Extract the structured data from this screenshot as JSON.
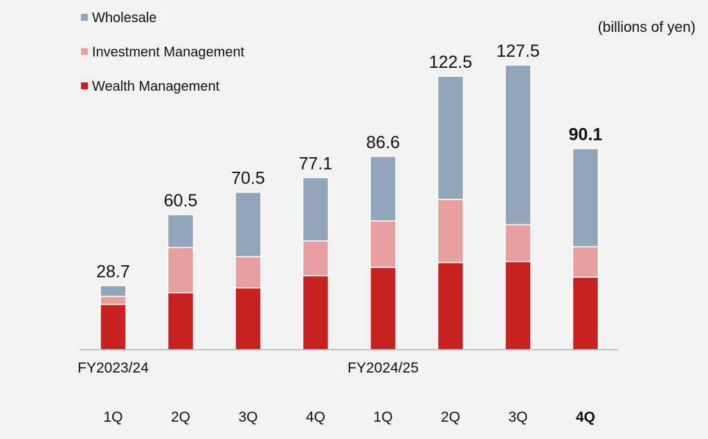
{
  "chart_data": {
    "type": "bar",
    "stacked": true,
    "unit_note": "(billions of yen)",
    "categories": [
      "1Q",
      "2Q",
      "3Q",
      "4Q",
      "1Q",
      "2Q",
      "3Q",
      "4Q"
    ],
    "fiscal_year_labels": [
      {
        "label": "FY2023/24",
        "starts_at_index": 0
      },
      {
        "label": "FY2024/25",
        "starts_at_index": 4
      }
    ],
    "series": [
      {
        "name": "Wealth Management",
        "color": "#c9211e",
        "values": [
          20.3,
          25.5,
          27.7,
          33.1,
          36.9,
          39.0,
          39.5,
          32.5
        ]
      },
      {
        "name": "Investment Management",
        "color": "#e6a0a0",
        "values": [
          3.6,
          20.3,
          14.0,
          15.6,
          20.8,
          28.3,
          16.5,
          13.6
        ]
      },
      {
        "name": "Wholesale",
        "color": "#93a6b9",
        "values": [
          4.8,
          14.7,
          28.8,
          28.4,
          28.9,
          55.2,
          71.5,
          44.0
        ]
      }
    ],
    "totals": [
      "28.7",
      "60.5",
      "70.5",
      "77.1",
      "86.6",
      "122.5",
      "127.5",
      "90.1"
    ],
    "highlight_index": 7,
    "highlight_color": "#c9211e",
    "legend_order": [
      "Wholesale",
      "Investment Management",
      "Wealth Management"
    ],
    "legend_position": "top-left",
    "ylim": [
      0,
      140
    ],
    "grid": false
  }
}
